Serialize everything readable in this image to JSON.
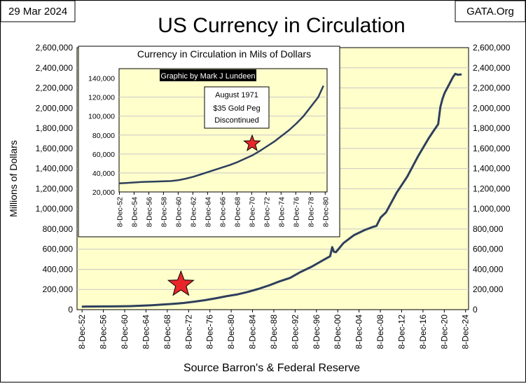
{
  "header": {
    "date_label": "29 Mar 2024",
    "source_label": "GATA.Org"
  },
  "colors": {
    "plot_bg": "#ffffcc",
    "line": "#2e3f5c",
    "star": "#e8262a",
    "grid": "#c8c8c8"
  },
  "chart_data": [
    {
      "type": "line",
      "title": "US Currency in Circulation",
      "ylabel": "Millions of Dollars",
      "xlabel": "Source Barron's & Federal Reserve",
      "ylim": [
        0,
        2600000
      ],
      "xlim": [
        1952.0,
        2025.5
      ],
      "y_ticks": [
        "0",
        "200,000",
        "400,000",
        "600,000",
        "800,000",
        "1,000,000",
        "1,200,000",
        "1,400,000",
        "1,600,000",
        "1,800,000",
        "2,000,000",
        "2,200,000",
        "2,400,000",
        "2,600,000"
      ],
      "x_ticks": [
        "8-Dec-52",
        "8-Dec-56",
        "8-Dec-60",
        "8-Dec-64",
        "8-Dec-68",
        "8-Dec-72",
        "8-Dec-76",
        "8-Dec-80",
        "8-Dec-84",
        "8-Dec-88",
        "8-Dec-92",
        "8-Dec-96",
        "8-Dec-00",
        "8-Dec-04",
        "8-Dec-08",
        "8-Dec-12",
        "8-Dec-16",
        "8-Dec-20",
        "8-Dec-24"
      ],
      "series": [
        {
          "name": "Currency in Circulation",
          "x": [
            1952.9,
            1955,
            1958,
            1960,
            1962,
            1964,
            1966,
            1968,
            1970,
            1972,
            1974,
            1976,
            1978,
            1980,
            1982,
            1984,
            1986,
            1988,
            1990,
            1992,
            1994,
            1996,
            1998,
            1999.5,
            1999.9,
            2000.2,
            2000.6,
            2002,
            2004,
            2006,
            2007.5,
            2008.2,
            2009,
            2010,
            2012,
            2014,
            2016,
            2018,
            2019,
            2019.8,
            2020.2,
            2020.6,
            2021,
            2022,
            2022.6,
            2023,
            2023.5,
            2024.2
          ],
          "values": [
            30000,
            31000,
            32000,
            33000,
            35000,
            39000,
            44000,
            50000,
            57000,
            66000,
            79000,
            94000,
            112000,
            133000,
            150000,
            175000,
            205000,
            240000,
            280000,
            315000,
            375000,
            425000,
            485000,
            530000,
            620000,
            575000,
            570000,
            660000,
            740000,
            790000,
            820000,
            830000,
            915000,
            965000,
            1160000,
            1320000,
            1520000,
            1700000,
            1780000,
            1840000,
            2010000,
            2090000,
            2150000,
            2250000,
            2310000,
            2340000,
            2330000,
            2335000
          ]
        }
      ],
      "annotations": [
        {
          "label": "star",
          "x": 1971.5,
          "y": 250000
        }
      ]
    },
    {
      "type": "line",
      "title": "Currency in Circulation in Mils of Dollars",
      "credit": "Graphic by Mark J Lundeen",
      "annotation_lines": [
        "August 1971",
        "$35 Gold Peg",
        "Discontinued"
      ],
      "ylim": [
        20000,
        150000
      ],
      "xlim": [
        1952.9,
        1981.2
      ],
      "y_ticks": [
        "20,000",
        "40,000",
        "60,000",
        "80,000",
        "100,000",
        "120,000",
        "140,000"
      ],
      "x_ticks": [
        "8-Dec-52",
        "8-Dec-54",
        "8-Dec-56",
        "8-Dec-58",
        "8-Dec-60",
        "8-Dec-62",
        "8-Dec-64",
        "8-Dec-66",
        "8-Dec-68",
        "8-Dec-70",
        "8-Dec-72",
        "8-Dec-74",
        "8-Dec-76",
        "8-Dec-78",
        "8-Dec-80"
      ],
      "series": [
        {
          "name": "Currency in Circulation",
          "x": [
            1952.9,
            1954,
            1956,
            1958,
            1960,
            1961,
            1962,
            1963,
            1964,
            1965,
            1966,
            1967,
            1968,
            1969,
            1970,
            1971,
            1972,
            1973,
            1974,
            1975,
            1976,
            1977,
            1978,
            1979,
            1980,
            1980.7
          ],
          "values": [
            29000,
            29500,
            30500,
            31000,
            31500,
            32500,
            34000,
            36000,
            38500,
            41000,
            43500,
            46000,
            48500,
            51500,
            55000,
            58500,
            63000,
            68000,
            73000,
            79000,
            85000,
            92000,
            100000,
            110000,
            120000,
            132000
          ]
        }
      ],
      "annotations": [
        {
          "label": "star",
          "x": 1971.0,
          "y": 71000
        }
      ]
    }
  ]
}
